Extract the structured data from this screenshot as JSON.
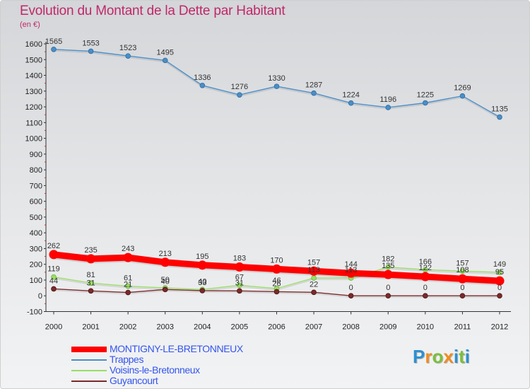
{
  "title": "Evolution du Montant de la Dette par Habitant",
  "subtitle": "(en €)",
  "logo": {
    "text": "Proxiti",
    "letters": [
      {
        "ch": "P",
        "color": "#2e8fd0"
      },
      {
        "ch": "r",
        "color": "#f08c1e"
      },
      {
        "ch": "o",
        "color": "#7bbf3a"
      },
      {
        "ch": "x",
        "color": "#f08c1e"
      },
      {
        "ch": "i",
        "color": "#2e8fd0"
      },
      {
        "ch": "t",
        "color": "#7bbf3a"
      },
      {
        "ch": "i",
        "color": "#2e8fd0"
      }
    ]
  },
  "chart_data": {
    "type": "line",
    "title": "Evolution du Montant de la Dette par Habitant",
    "ylabel": "(en €)",
    "x": [
      "2000",
      "2001",
      "2002",
      "2003",
      "2004",
      "2005",
      "2006",
      "2007",
      "2008",
      "2009",
      "2010",
      "2011",
      "2012"
    ],
    "ylim": [
      -100,
      1600
    ],
    "yticks": [
      "-100",
      "0",
      "100",
      "200",
      "300",
      "400",
      "500",
      "600",
      "700",
      "800",
      "900",
      "1000",
      "1100",
      "1200",
      "1300",
      "1400",
      "1500",
      "1600"
    ],
    "grid": false,
    "legend_position": "bottom-left",
    "series": [
      {
        "name": "MONTIGNY-LE-BRETONNEUX",
        "color": "#ff0000",
        "values": [
          262,
          235,
          243,
          213,
          195,
          183,
          170,
          157,
          144,
          135,
          122,
          108,
          95
        ],
        "labels": [
          "262",
          "235",
          "243",
          "213",
          "195",
          "183",
          "170",
          "157",
          "144",
          "135",
          "122",
          "108",
          "95"
        ]
      },
      {
        "name": "Trappes",
        "color": "#4a8ec8",
        "values": [
          1565,
          1553,
          1523,
          1495,
          1336,
          1276,
          1330,
          1287,
          1224,
          1196,
          1225,
          1269,
          1135
        ],
        "labels": [
          "1565",
          "1553",
          "1523",
          "1495",
          "1336",
          "1276",
          "1330",
          "1287",
          "1224",
          "1196",
          "1225",
          "1269",
          "1135"
        ]
      },
      {
        "name": "Voisins-le-Bretonneux",
        "color": "#99dd66",
        "values": [
          119,
          81,
          61,
          50,
          40,
          67,
          46,
          113,
          113,
          182,
          166,
          157,
          149
        ],
        "labels": [
          "119",
          "81",
          "61",
          "50",
          "40",
          "67",
          "46",
          "113",
          "113",
          "182",
          "166",
          "157",
          "149"
        ]
      },
      {
        "name": "Guyancourt",
        "color": "#7a2a2a",
        "values": [
          44,
          31,
          21,
          40,
          33,
          31,
          26,
          22,
          0,
          0,
          0,
          0,
          0
        ],
        "labels": [
          "44",
          "31",
          "21",
          "40",
          "33",
          "31",
          "26",
          "22",
          "0",
          "0",
          "0",
          "0",
          "0"
        ]
      }
    ]
  }
}
